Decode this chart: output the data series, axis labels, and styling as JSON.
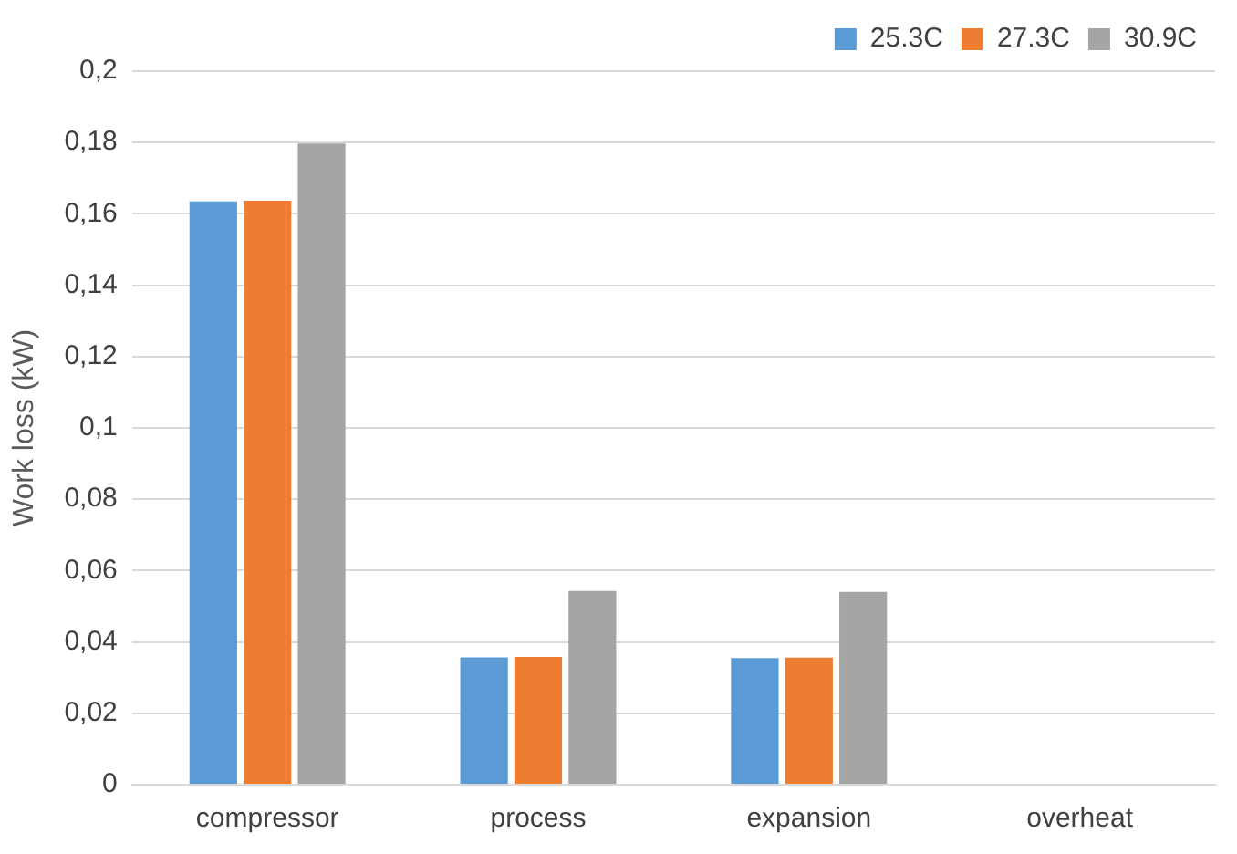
{
  "chart_data": {
    "type": "bar",
    "ylabel": "Work loss (kW)",
    "categories": [
      "compressor",
      "process",
      "expansion",
      "overheat"
    ],
    "series": [
      {
        "name": "25.3C",
        "color": "#5b9bd5",
        "values": [
          0.1635,
          0.0357,
          0.0355,
          0
        ]
      },
      {
        "name": "27.3C",
        "color": "#ed7d31",
        "values": [
          0.1637,
          0.0358,
          0.0356,
          0
        ]
      },
      {
        "name": "30.9C",
        "color": "#a5a5a5",
        "values": [
          0.1797,
          0.0543,
          0.054,
          0
        ]
      }
    ],
    "ylim": [
      0,
      0.2
    ],
    "yticks": [
      {
        "value": 0,
        "label": "0"
      },
      {
        "value": 0.02,
        "label": "0,02"
      },
      {
        "value": 0.04,
        "label": "0,04"
      },
      {
        "value": 0.06,
        "label": "0,06"
      },
      {
        "value": 0.08,
        "label": "0,08"
      },
      {
        "value": 0.1,
        "label": "0,1"
      },
      {
        "value": 0.12,
        "label": "0,12"
      },
      {
        "value": 0.14,
        "label": "0,14"
      },
      {
        "value": 0.16,
        "label": "0,16"
      },
      {
        "value": 0.18,
        "label": "0,18"
      },
      {
        "value": 0.2,
        "label": "0,2"
      }
    ],
    "grid": "y",
    "legend": "top right"
  }
}
